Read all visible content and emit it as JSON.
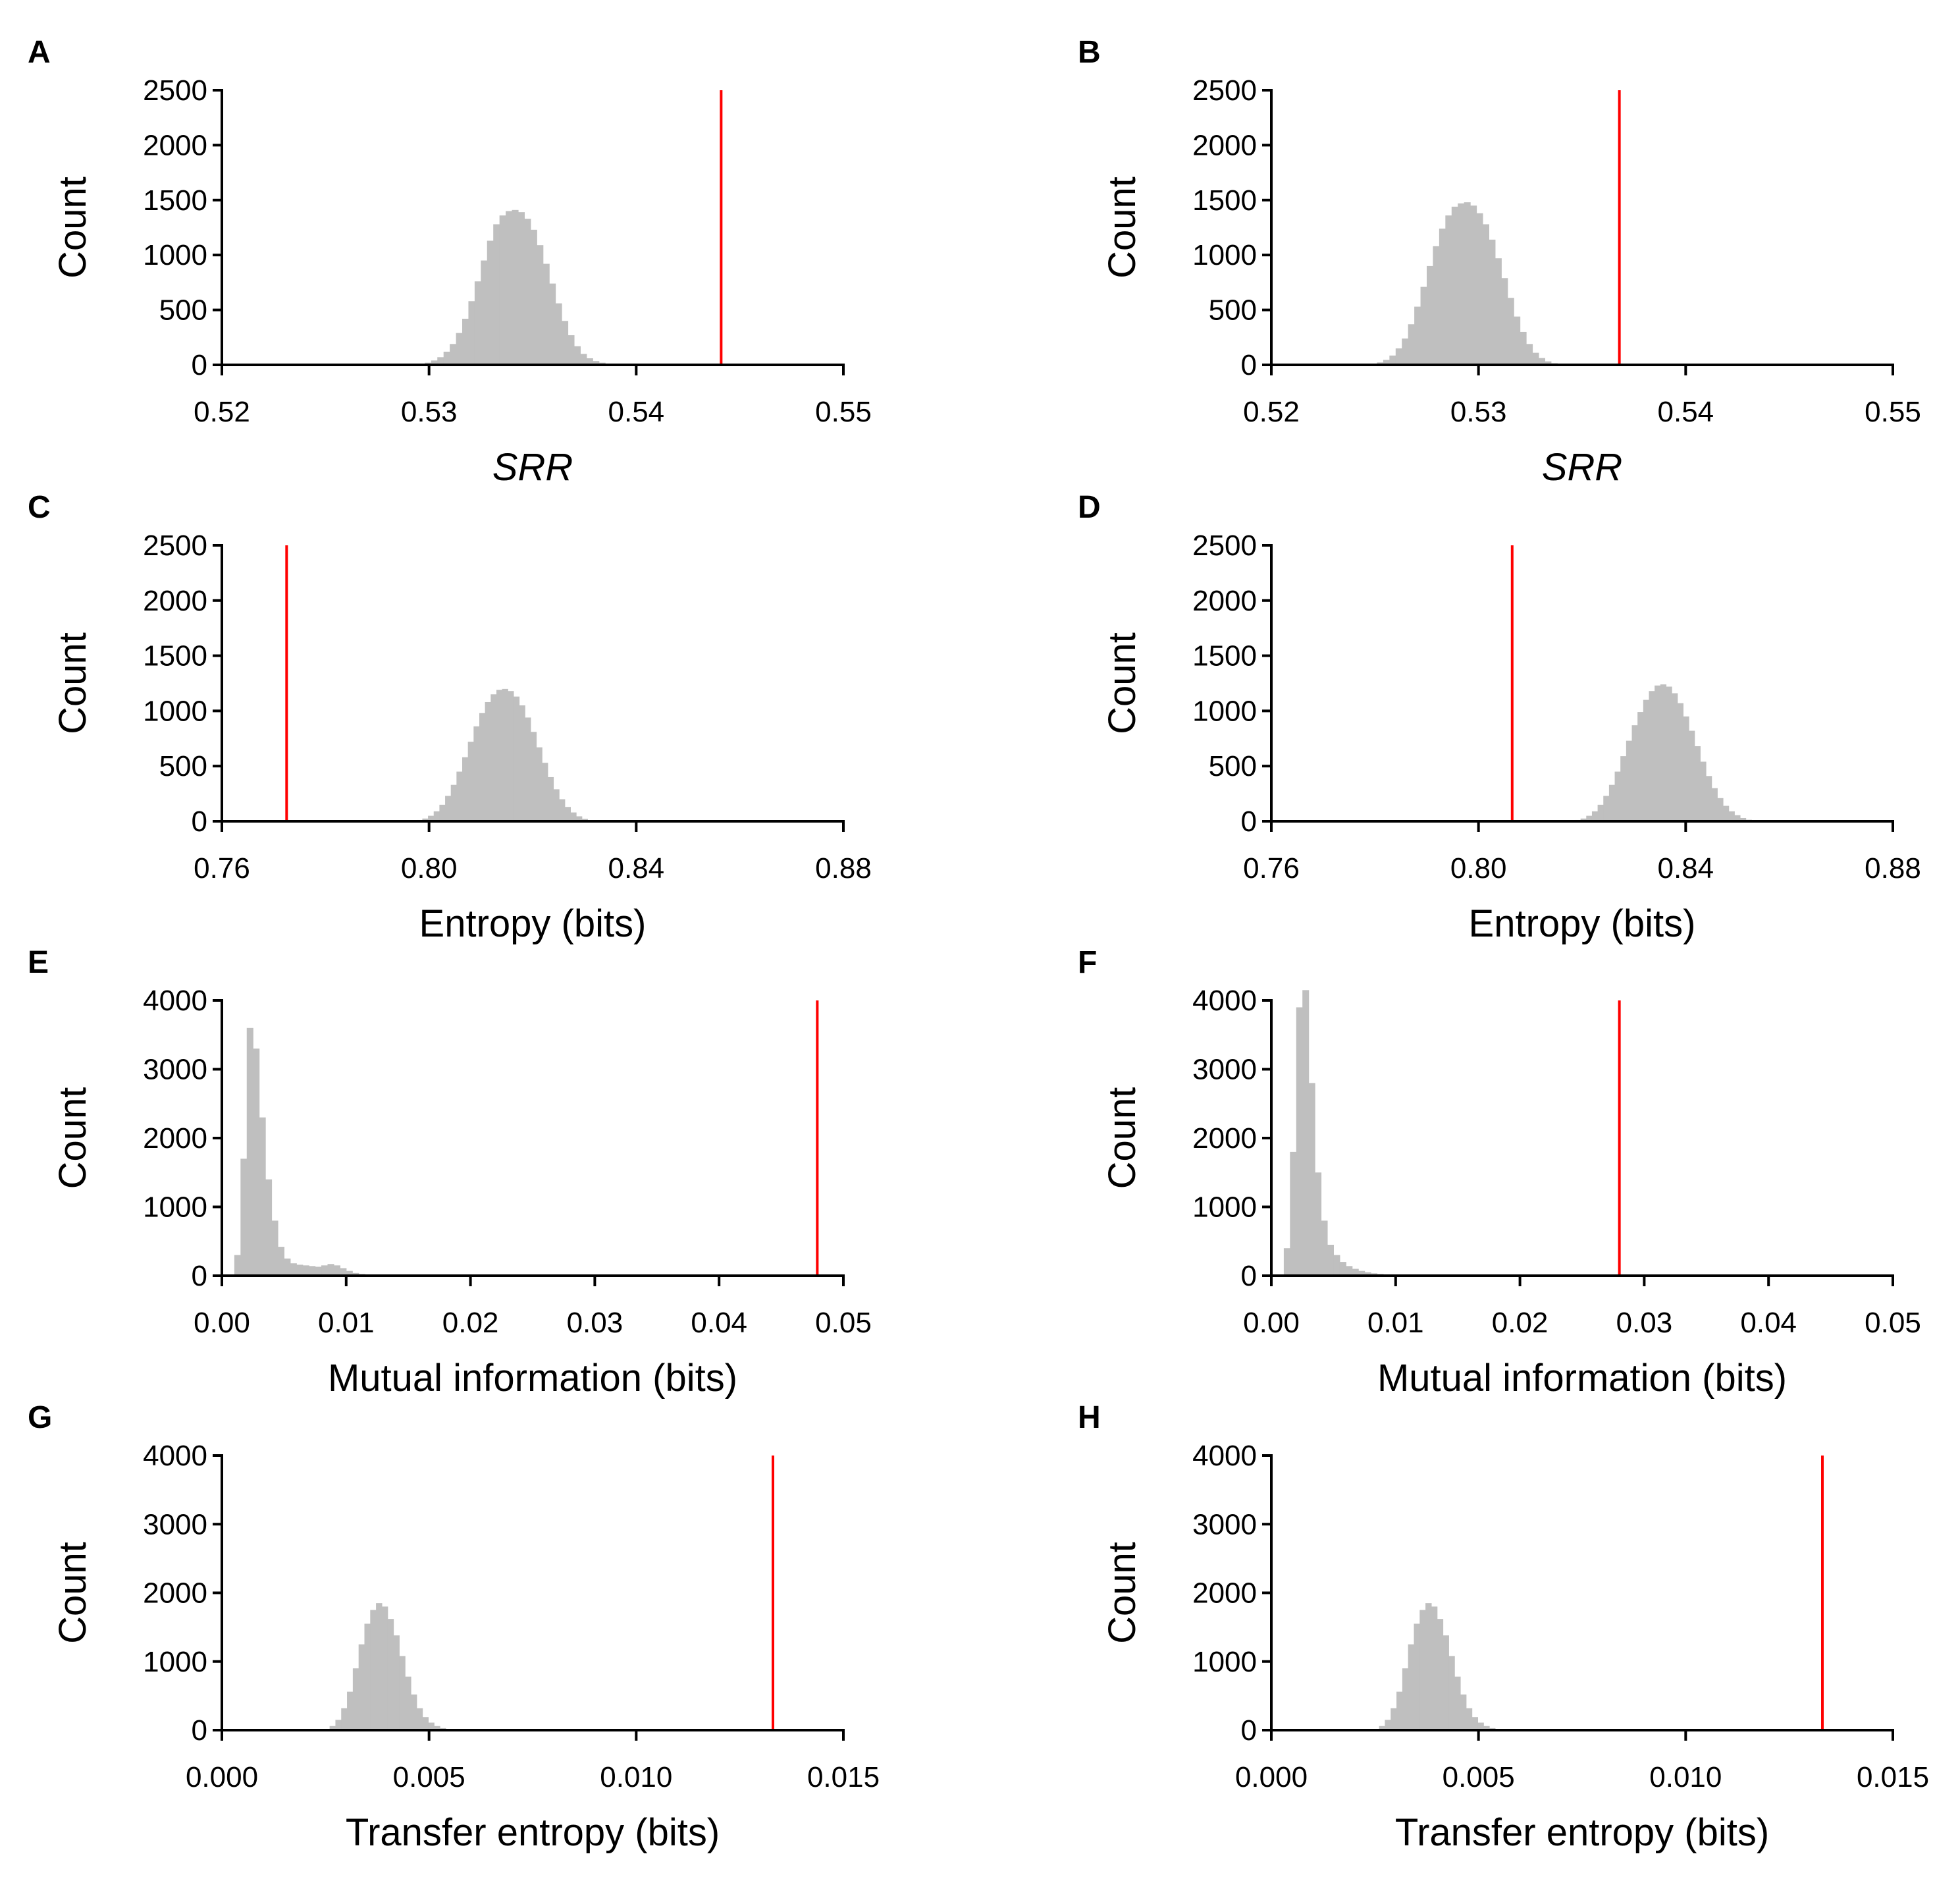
{
  "chart_data": [
    {
      "panel": "A",
      "type": "bar",
      "ylabel": "Count",
      "xlabel": "SRR",
      "xlabel_italic": true,
      "xlim": [
        0.52,
        0.55
      ],
      "ylim": [
        0,
        2500
      ],
      "xticks": [
        0.52,
        0.53,
        0.54,
        0.55
      ],
      "xtick_labels": [
        "0.52",
        "0.53",
        "0.54",
        "0.55"
      ],
      "yticks": [
        0,
        500,
        1000,
        1500,
        2000,
        2500
      ],
      "ytick_labels": [
        "0",
        "500",
        "1000",
        "1500",
        "2000",
        "2500"
      ],
      "histogram": {
        "start": 0.5289,
        "bin_width": 0.0003,
        "counts": [
          2,
          5,
          10,
          20,
          40,
          70,
          120,
          190,
          290,
          420,
          580,
          760,
          950,
          1130,
          1280,
          1360,
          1400,
          1410,
          1390,
          1330,
          1230,
          1090,
          920,
          740,
          560,
          400,
          270,
          170,
          100,
          60,
          35,
          20,
          10,
          4
        ]
      },
      "observed_value": 0.5441
    },
    {
      "panel": "B",
      "type": "bar",
      "ylabel": "Count",
      "xlabel": "SRR",
      "xlabel_italic": true,
      "xlim": [
        0.52,
        0.55
      ],
      "ylim": [
        0,
        2500
      ],
      "xticks": [
        0.52,
        0.53,
        0.54,
        0.55
      ],
      "xtick_labels": [
        "0.52",
        "0.53",
        "0.54",
        "0.55"
      ],
      "yticks": [
        0,
        500,
        1000,
        1500,
        2000,
        2500
      ],
      "ytick_labels": [
        "0",
        "500",
        "1000",
        "1500",
        "2000",
        "2500"
      ],
      "histogram": {
        "start": 0.5245,
        "bin_width": 0.0003,
        "counts": [
          4,
          10,
          22,
          45,
          85,
          150,
          240,
          370,
          530,
          710,
          900,
          1080,
          1240,
          1360,
          1440,
          1470,
          1480,
          1450,
          1380,
          1280,
          1140,
          970,
          790,
          610,
          440,
          300,
          190,
          110,
          62,
          32,
          15,
          6
        ]
      },
      "observed_value": 0.5368
    },
    {
      "panel": "C",
      "type": "bar",
      "ylabel": "Count",
      "xlabel": "Entropy (bits)",
      "xlabel_italic": false,
      "xlim": [
        0.76,
        0.88
      ],
      "ylim": [
        0,
        2500
      ],
      "xticks": [
        0.76,
        0.8,
        0.84,
        0.88
      ],
      "xtick_labels": [
        "0.76",
        "0.80",
        "0.84",
        "0.88"
      ],
      "yticks": [
        0,
        500,
        1000,
        1500,
        2000,
        2500
      ],
      "ytick_labels": [
        "0",
        "500",
        "1000",
        "1500",
        "2000",
        "2500"
      ],
      "histogram": {
        "start": 0.7965,
        "bin_width": 0.0011,
        "counts": [
          5,
          12,
          25,
          50,
          90,
          150,
          230,
          330,
          450,
          580,
          720,
          860,
          980,
          1080,
          1150,
          1190,
          1200,
          1180,
          1130,
          1050,
          940,
          810,
          670,
          530,
          400,
          290,
          200,
          130,
          80,
          45,
          22,
          10
        ]
      },
      "observed_value": 0.7725
    },
    {
      "panel": "D",
      "type": "bar",
      "ylabel": "Count",
      "xlabel": "Entropy (bits)",
      "xlabel_italic": false,
      "xlim": [
        0.76,
        0.88
      ],
      "ylim": [
        0,
        2500
      ],
      "xticks": [
        0.76,
        0.8,
        0.84,
        0.88
      ],
      "xtick_labels": [
        "0.76",
        "0.80",
        "0.84",
        "0.88"
      ],
      "yticks": [
        0,
        500,
        1000,
        1500,
        2000,
        2500
      ],
      "ytick_labels": [
        "0",
        "500",
        "1000",
        "1500",
        "2000",
        "2500"
      ],
      "histogram": {
        "start": 0.8175,
        "bin_width": 0.0011,
        "counts": [
          5,
          12,
          25,
          50,
          90,
          150,
          230,
          330,
          450,
          590,
          730,
          870,
          990,
          1100,
          1180,
          1230,
          1240,
          1220,
          1160,
          1070,
          950,
          820,
          680,
          540,
          410,
          300,
          210,
          140,
          90,
          55,
          30,
          14
        ]
      },
      "observed_value": 0.8065
    },
    {
      "panel": "E",
      "type": "bar",
      "ylabel": "Count",
      "xlabel": "Mutual information (bits)",
      "xlabel_italic": false,
      "xlim": [
        0,
        0.05
      ],
      "ylim": [
        0,
        4000
      ],
      "xticks": [
        0,
        0.01,
        0.02,
        0.03,
        0.04,
        0.05
      ],
      "xtick_labels": [
        "0.00",
        "0.01",
        "0.02",
        "0.03",
        "0.04",
        "0.05"
      ],
      "yticks": [
        0,
        1000,
        2000,
        3000,
        4000
      ],
      "ytick_labels": [
        "0",
        "1000",
        "2000",
        "3000",
        "4000"
      ],
      "histogram": {
        "start": 0.001,
        "bin_width": 0.0005,
        "counts": [
          300,
          1700,
          3600,
          3300,
          2300,
          1400,
          800,
          420,
          250,
          180,
          160,
          150,
          140,
          130,
          150,
          170,
          150,
          110,
          70,
          40,
          25,
          15,
          8,
          4
        ]
      },
      "observed_value": 0.0479
    },
    {
      "panel": "F",
      "type": "bar",
      "ylabel": "Count",
      "xlabel": "Mutual information (bits)",
      "xlabel_italic": false,
      "xlim": [
        0,
        0.05
      ],
      "ylim": [
        0,
        4000
      ],
      "xticks": [
        0,
        0.01,
        0.02,
        0.03,
        0.04,
        0.05
      ],
      "xtick_labels": [
        "0.00",
        "0.01",
        "0.02",
        "0.03",
        "0.04",
        "0.05"
      ],
      "yticks": [
        0,
        1000,
        2000,
        3000,
        4000
      ],
      "ytick_labels": [
        "0",
        "1000",
        "2000",
        "3000",
        "4000"
      ],
      "histogram": {
        "start": 0.001,
        "bin_width": 0.0005,
        "counts": [
          400,
          1800,
          3900,
          4150,
          2800,
          1500,
          800,
          450,
          300,
          200,
          140,
          100,
          70,
          50,
          35,
          25,
          15,
          8,
          4
        ]
      },
      "observed_value": 0.028
    },
    {
      "panel": "G",
      "type": "bar",
      "ylabel": "Count",
      "xlabel": "Transfer entropy (bits)",
      "xlabel_italic": false,
      "xlim": [
        0,
        0.015
      ],
      "ylim": [
        0,
        4000
      ],
      "xticks": [
        0,
        0.005,
        0.01,
        0.015
      ],
      "xtick_labels": [
        "0.000",
        "0.005",
        "0.010",
        "0.015"
      ],
      "yticks": [
        0,
        1000,
        2000,
        3000,
        4000
      ],
      "ytick_labels": [
        "0",
        "1000",
        "2000",
        "3000",
        "4000"
      ],
      "histogram": {
        "start": 0.0026,
        "bin_width": 0.00014,
        "counts": [
          60,
          150,
          320,
          560,
          900,
          1250,
          1550,
          1750,
          1850,
          1800,
          1620,
          1380,
          1080,
          780,
          520,
          320,
          190,
          110,
          60,
          30,
          15,
          6
        ]
      },
      "observed_value": 0.0133
    },
    {
      "panel": "H",
      "type": "bar",
      "ylabel": "Count",
      "xlabel": "Transfer entropy (bits)",
      "xlabel_italic": false,
      "xlim": [
        0,
        0.015
      ],
      "ylim": [
        0,
        4000
      ],
      "xticks": [
        0,
        0.005,
        0.01,
        0.015
      ],
      "xtick_labels": [
        "0.000",
        "0.005",
        "0.010",
        "0.015"
      ],
      "yticks": [
        0,
        1000,
        2000,
        3000,
        4000
      ],
      "ytick_labels": [
        "0",
        "1000",
        "2000",
        "3000",
        "4000"
      ],
      "histogram": {
        "start": 0.0026,
        "bin_width": 0.00014,
        "counts": [
          60,
          150,
          320,
          560,
          900,
          1250,
          1550,
          1750,
          1850,
          1800,
          1620,
          1380,
          1080,
          780,
          520,
          320,
          190,
          110,
          60,
          30,
          15,
          6
        ]
      },
      "observed_value": 0.0133
    }
  ],
  "colors": {
    "histogram": "#bfbfbf",
    "observed": "#ff0000",
    "axis": "#000000"
  }
}
